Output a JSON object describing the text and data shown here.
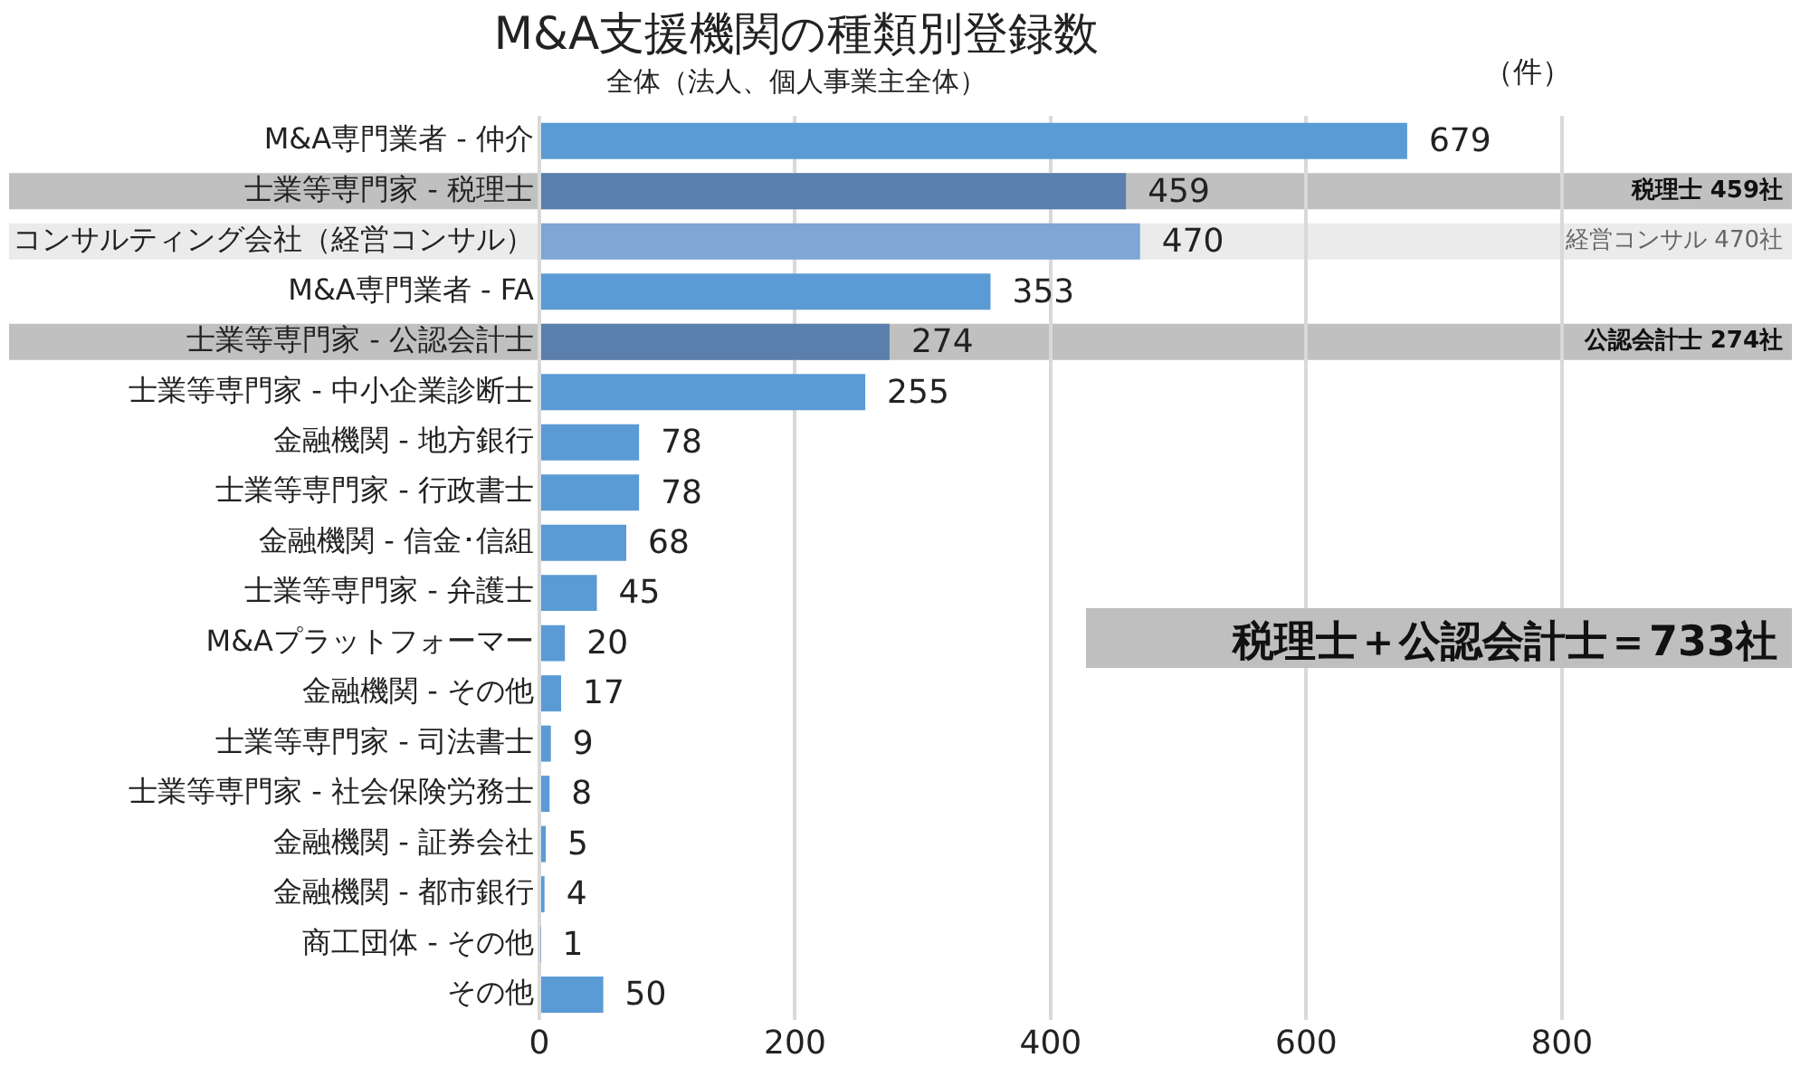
{
  "chart_data": {
    "type": "bar",
    "orientation": "horizontal",
    "title": "M&A支援機関の種類別登録数",
    "subtitle": "全体（法人、個人事業主全体）",
    "categories": [
      "M&A専門業者 - 仲介",
      "士業等専門家 - 税理士",
      "コンサルティング会社（経営コンサル）",
      "M&A専門業者 - FA",
      "士業等専門家 - 公認会計士",
      "士業等専門家 - 中小企業診断士",
      "金融機関 - 地方銀行",
      "士業等専門家 - 行政書士",
      "金融機関 - 信金･信組",
      "士業等専門家 - 弁護士",
      "M&Aプラットフォーマー",
      "金融機関 - その他",
      "士業等専門家 - 司法書士",
      "士業等専門家 - 社会保険労務士",
      "金融機関 - 証券会社",
      "金融機関 - 都市銀行",
      "商工団体 - その他",
      "その他"
    ],
    "values": [
      679,
      459,
      470,
      353,
      274,
      255,
      78,
      78,
      68,
      45,
      20,
      17,
      9,
      8,
      5,
      4,
      1,
      50
    ],
    "colors": [
      "#5b9bd5",
      "#5a7fac",
      "#7fa6d4",
      "#5b9bd5",
      "#5a7fac",
      "#5b9bd5",
      "#5b9bd5",
      "#5b9bd5",
      "#5b9bd5",
      "#5b9bd5",
      "#5b9bd5",
      "#5b9bd5",
      "#5b9bd5",
      "#5b9bd5",
      "#5b9bd5",
      "#5b9bd5",
      "#5b9bd5",
      "#5b9bd5"
    ],
    "xlim": [
      0,
      980
    ],
    "xticks": [
      0,
      200,
      400,
      600,
      800
    ],
    "grid": "x",
    "data_labels": true,
    "legend": false,
    "bands": [
      {
        "axis": "y",
        "from": "士業等専門家 - 税理士",
        "to": "士業等専門家 - 税理士",
        "label": "税理士 459社",
        "color": "#c0c0c0"
      },
      {
        "axis": "y",
        "from": "コンサルティング会社（経営コンサル）",
        "to": "コンサルティング会社（経営コンサル）",
        "label": "経営コンサル 470社",
        "color": "#ebebeb"
      },
      {
        "axis": "y",
        "from": "士業等専門家 - 公認会計士",
        "to": "士業等専門家 - 公認会計士",
        "label": "公認会計士 274社",
        "color": "#c0c0c0"
      }
    ],
    "annotations": [
      "（件）",
      "税理士＋公認会計士＝733社"
    ]
  }
}
